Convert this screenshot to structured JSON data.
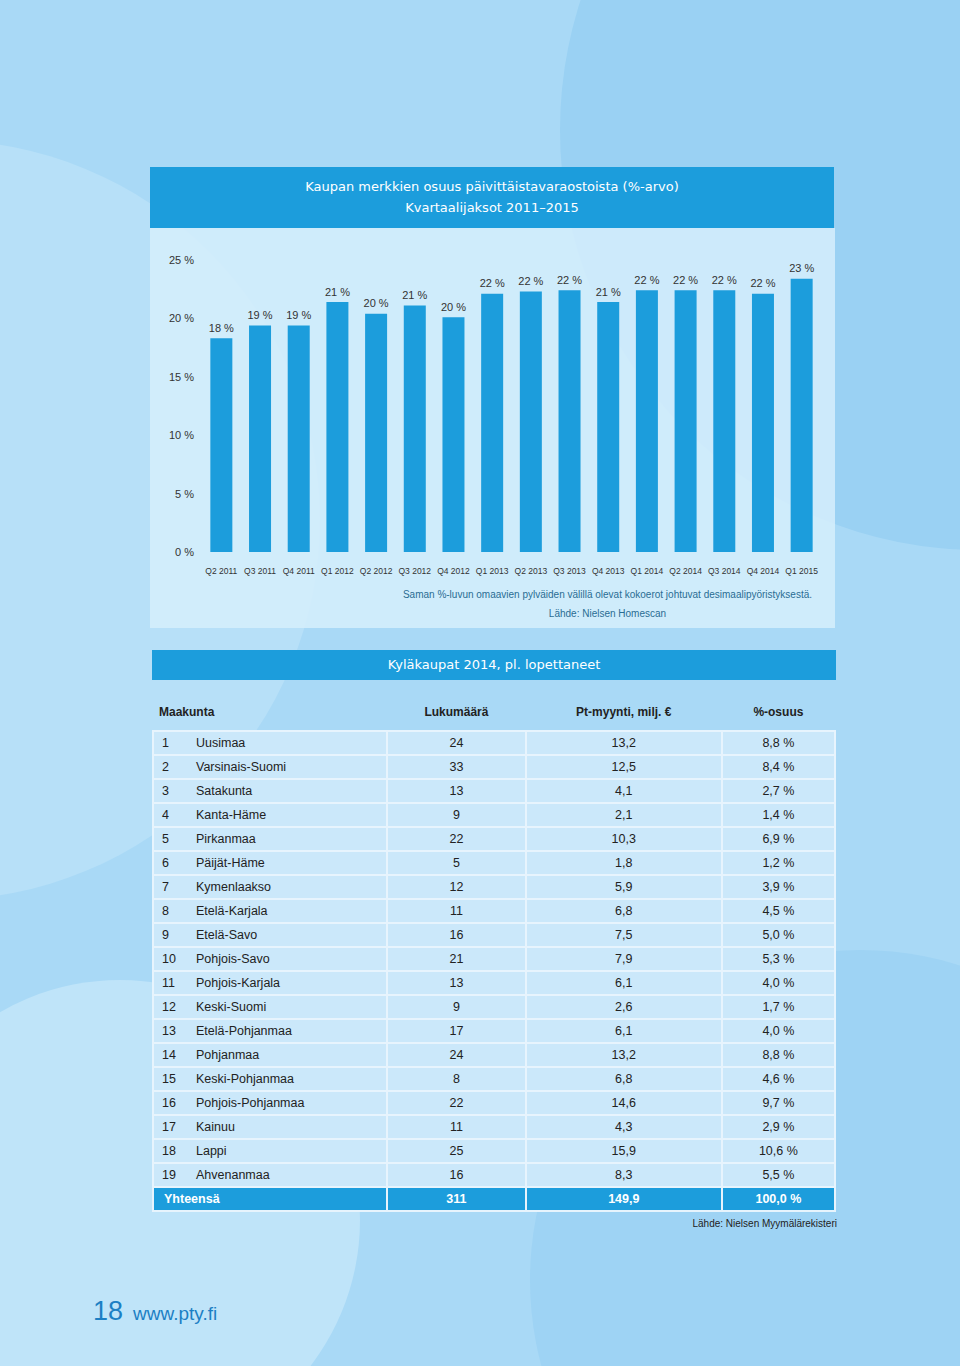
{
  "chart_data": {
    "type": "bar",
    "title": "Kaupan merkkien osuus päivittäistavaraostoista (%-arvo)",
    "subtitle": "Kvartaalijaksot 2011–2015",
    "categories": [
      "Q2 2011",
      "Q3 2011",
      "Q4 2011",
      "Q1 2012",
      "Q2 2012",
      "Q3 2012",
      "Q4 2012",
      "Q1 2013",
      "Q2 2013",
      "Q3 2013",
      "Q4 2013",
      "Q1 2014",
      "Q2 2014",
      "Q3 2014",
      "Q4 2014",
      "Q1 2015"
    ],
    "values": [
      18.3,
      19.4,
      19.4,
      21.4,
      20.4,
      21.1,
      20.1,
      22.1,
      22.3,
      22.4,
      21.4,
      22.4,
      22.4,
      22.4,
      22.1,
      23.4
    ],
    "value_labels": [
      "18 %",
      "19 %",
      "19 %",
      "21 %",
      "20 %",
      "21 %",
      "20 %",
      "22 %",
      "22 %",
      "22 %",
      "21 %",
      "22 %",
      "22 %",
      "22 %",
      "22 %",
      "23 %"
    ],
    "color": "#1c9ddc",
    "ylim": [
      0,
      25
    ],
    "yticks": [
      {
        "value": 0,
        "label": "0 %"
      },
      {
        "value": 5,
        "label": "5 %"
      },
      {
        "value": 10,
        "label": "10 %"
      },
      {
        "value": 15,
        "label": "15 %"
      },
      {
        "value": 20,
        "label": "20 %"
      },
      {
        "value": 25,
        "label": "25 %"
      }
    ],
    "grid": false,
    "data_labels": true,
    "annotations": [
      "Saman %-luvun omaavien pylväiden välillä olevat kokoerot johtuvat desimaalipyöristyksestä.",
      "Lähde: Nielsen Homescan"
    ]
  },
  "table": {
    "title": "Kyläkaupat 2014, pl. lopettaneet",
    "header": [
      "Maakunta",
      "Lukumäärä",
      "Pt-myynti, milj. €",
      "%-osuus"
    ],
    "rows": [
      [
        "1",
        "Uusimaa",
        "24",
        "13,2",
        "8,8 %"
      ],
      [
        "2",
        "Varsinais-Suomi",
        "33",
        "12,5",
        "8,4 %"
      ],
      [
        "3",
        "Satakunta",
        "13",
        "4,1",
        "2,7 %"
      ],
      [
        "4",
        "Kanta-Häme",
        "9",
        "2,1",
        "1,4 %"
      ],
      [
        "5",
        "Pirkanmaa",
        "22",
        "10,3",
        "6,9 %"
      ],
      [
        "6",
        "Päijät-Häme",
        "5",
        "1,8",
        "1,2 %"
      ],
      [
        "7",
        "Kymenlaakso",
        "12",
        "5,9",
        "3,9 %"
      ],
      [
        "8",
        "Etelä-Karjala",
        "11",
        "6,8",
        "4,5 %"
      ],
      [
        "9",
        "Etelä-Savo",
        "16",
        "7,5",
        "5,0 %"
      ],
      [
        "10",
        "Pohjois-Savo",
        "21",
        "7,9",
        "5,3 %"
      ],
      [
        "11",
        "Pohjois-Karjala",
        "13",
        "6,1",
        "4,0 %"
      ],
      [
        "12",
        "Keski-Suomi",
        "9",
        "2,6",
        "1,7 %"
      ],
      [
        "13",
        "Etelä-Pohjanmaa",
        "17",
        "6,1",
        "4,0 %"
      ],
      [
        "14",
        "Pohjanmaa",
        "24",
        "13,2",
        "8,8 %"
      ],
      [
        "15",
        "Keski-Pohjanmaa",
        "8",
        "6,8",
        "4,6 %"
      ],
      [
        "16",
        "Pohjois-Pohjanmaa",
        "22",
        "14,6",
        "9,7 %"
      ],
      [
        "17",
        "Kainuu",
        "11",
        "4,3",
        "2,9 %"
      ],
      [
        "18",
        "Lappi",
        "25",
        "15,9",
        "10,6 %"
      ],
      [
        "19",
        "Ahvenanmaa",
        "16",
        "8,3",
        "5,5 %"
      ]
    ],
    "total": [
      "Yhteensä",
      "311",
      "149,9",
      "100,0 %"
    ],
    "source": "Lähde: Nielsen Myymälärekisteri"
  },
  "footer": {
    "page": "18",
    "url": "www.pty.fi"
  }
}
